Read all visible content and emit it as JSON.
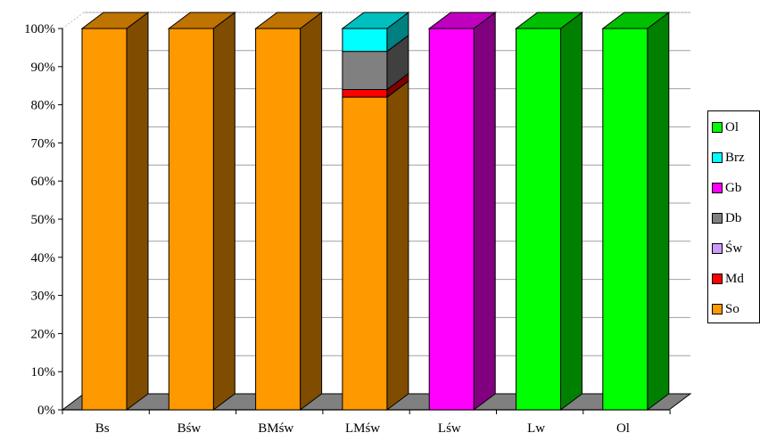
{
  "chart_data": {
    "type": "bar",
    "stacked": true,
    "percent_stacked": true,
    "three_d": true,
    "categories": [
      "Bs",
      "Bśw",
      "BMśw",
      "LMśw",
      "Lśw",
      "Lw",
      "Ol"
    ],
    "y_ticks": [
      "0%",
      "10%",
      "20%",
      "30%",
      "40%",
      "50%",
      "60%",
      "70%",
      "80%",
      "90%",
      "100%"
    ],
    "ylim": [
      0,
      100
    ],
    "grid": true,
    "legend_position": "right",
    "series": [
      {
        "name": "So",
        "color": "#FF9900",
        "values": [
          100,
          100,
          100,
          82,
          0,
          0,
          0
        ]
      },
      {
        "name": "Md",
        "color": "#FF0000",
        "values": [
          0,
          0,
          0,
          2,
          0,
          0,
          0
        ]
      },
      {
        "name": "Św",
        "color": "#CC99FF",
        "values": [
          0,
          0,
          0,
          0,
          0,
          0,
          0
        ]
      },
      {
        "name": "Db",
        "color": "#808080",
        "values": [
          0,
          0,
          0,
          10,
          0,
          0,
          0
        ]
      },
      {
        "name": "Gb",
        "color": "#FF00FF",
        "values": [
          0,
          0,
          0,
          0,
          100,
          0,
          0
        ]
      },
      {
        "name": "Brz",
        "color": "#00FFFF",
        "values": [
          0,
          0,
          0,
          6,
          0,
          0,
          0
        ]
      },
      {
        "name": "Ol",
        "color": "#00FF00",
        "values": [
          0,
          0,
          0,
          0,
          0,
          100,
          100
        ]
      }
    ],
    "legend_order": [
      "Ol",
      "Brz",
      "Gb",
      "Db",
      "Św",
      "Md",
      "So"
    ]
  }
}
